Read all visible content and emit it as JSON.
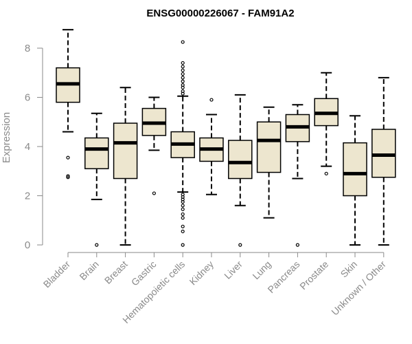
{
  "chart_data": {
    "type": "boxplot",
    "title": "ENSG00000226067 - FAM91A2",
    "xlabel": "",
    "ylabel": "Expression",
    "ylim": [
      0,
      8.8
    ],
    "yticks": [
      0,
      2,
      4,
      6,
      8
    ],
    "colors": {
      "box_fill": "#ede6cf",
      "box_stroke": "#000000",
      "median": "#000000",
      "axis": "#8a8a8a"
    },
    "categories": [
      "Bladder",
      "Brain",
      "Breast",
      "Gastric",
      "Hematopoietic cells",
      "Kidney",
      "Liver",
      "Lung",
      "Pancreas",
      "Prostate",
      "Skin",
      "Unknown / Other"
    ],
    "boxes": [
      {
        "category": "Bladder",
        "min": 4.6,
        "q1": 5.8,
        "median": 6.55,
        "q3": 7.2,
        "max": 8.75,
        "outliers": [
          3.55,
          2.8,
          2.75
        ]
      },
      {
        "category": "Brain",
        "min": 1.85,
        "q1": 3.1,
        "median": 3.9,
        "q3": 4.35,
        "max": 5.35,
        "outliers": [
          0.0
        ]
      },
      {
        "category": "Breast",
        "min": 0.0,
        "q1": 2.7,
        "median": 4.15,
        "q3": 4.95,
        "max": 6.4,
        "outliers": []
      },
      {
        "category": "Gastric",
        "min": 3.85,
        "q1": 4.45,
        "median": 4.95,
        "q3": 5.55,
        "max": 6.0,
        "outliers": [
          2.1
        ]
      },
      {
        "category": "Hematopoietic cells",
        "min": 2.15,
        "q1": 3.55,
        "median": 4.1,
        "q3": 4.6,
        "max": 6.05,
        "outliers": [
          8.25,
          7.4,
          7.25,
          7.1,
          6.95,
          6.8,
          6.65,
          6.5,
          6.4,
          6.25,
          6.15,
          2.05,
          1.95,
          1.85,
          1.75,
          1.6,
          1.45,
          1.25,
          1.1,
          0.75,
          0.55,
          0.0
        ]
      },
      {
        "category": "Kidney",
        "min": 2.05,
        "q1": 3.4,
        "median": 3.9,
        "q3": 4.35,
        "max": 5.3,
        "outliers": [
          5.9
        ]
      },
      {
        "category": "Liver",
        "min": 1.6,
        "q1": 2.7,
        "median": 3.35,
        "q3": 4.25,
        "max": 6.1,
        "outliers": [
          0.0
        ]
      },
      {
        "category": "Lung",
        "min": 1.1,
        "q1": 2.95,
        "median": 4.25,
        "q3": 5.0,
        "max": 5.6,
        "outliers": []
      },
      {
        "category": "Pancreas",
        "min": 2.7,
        "q1": 4.2,
        "median": 4.8,
        "q3": 5.3,
        "max": 5.7,
        "outliers": [
          0.0
        ]
      },
      {
        "category": "Prostate",
        "min": 3.2,
        "q1": 4.85,
        "median": 5.35,
        "q3": 5.95,
        "max": 7.0,
        "outliers": [
          2.9
        ]
      },
      {
        "category": "Skin",
        "min": 0.0,
        "q1": 2.0,
        "median": 2.9,
        "q3": 4.15,
        "max": 5.25,
        "outliers": []
      },
      {
        "category": "Unknown / Other",
        "min": 0.0,
        "q1": 2.75,
        "median": 3.65,
        "q3": 4.7,
        "max": 6.8,
        "outliers": []
      }
    ]
  }
}
